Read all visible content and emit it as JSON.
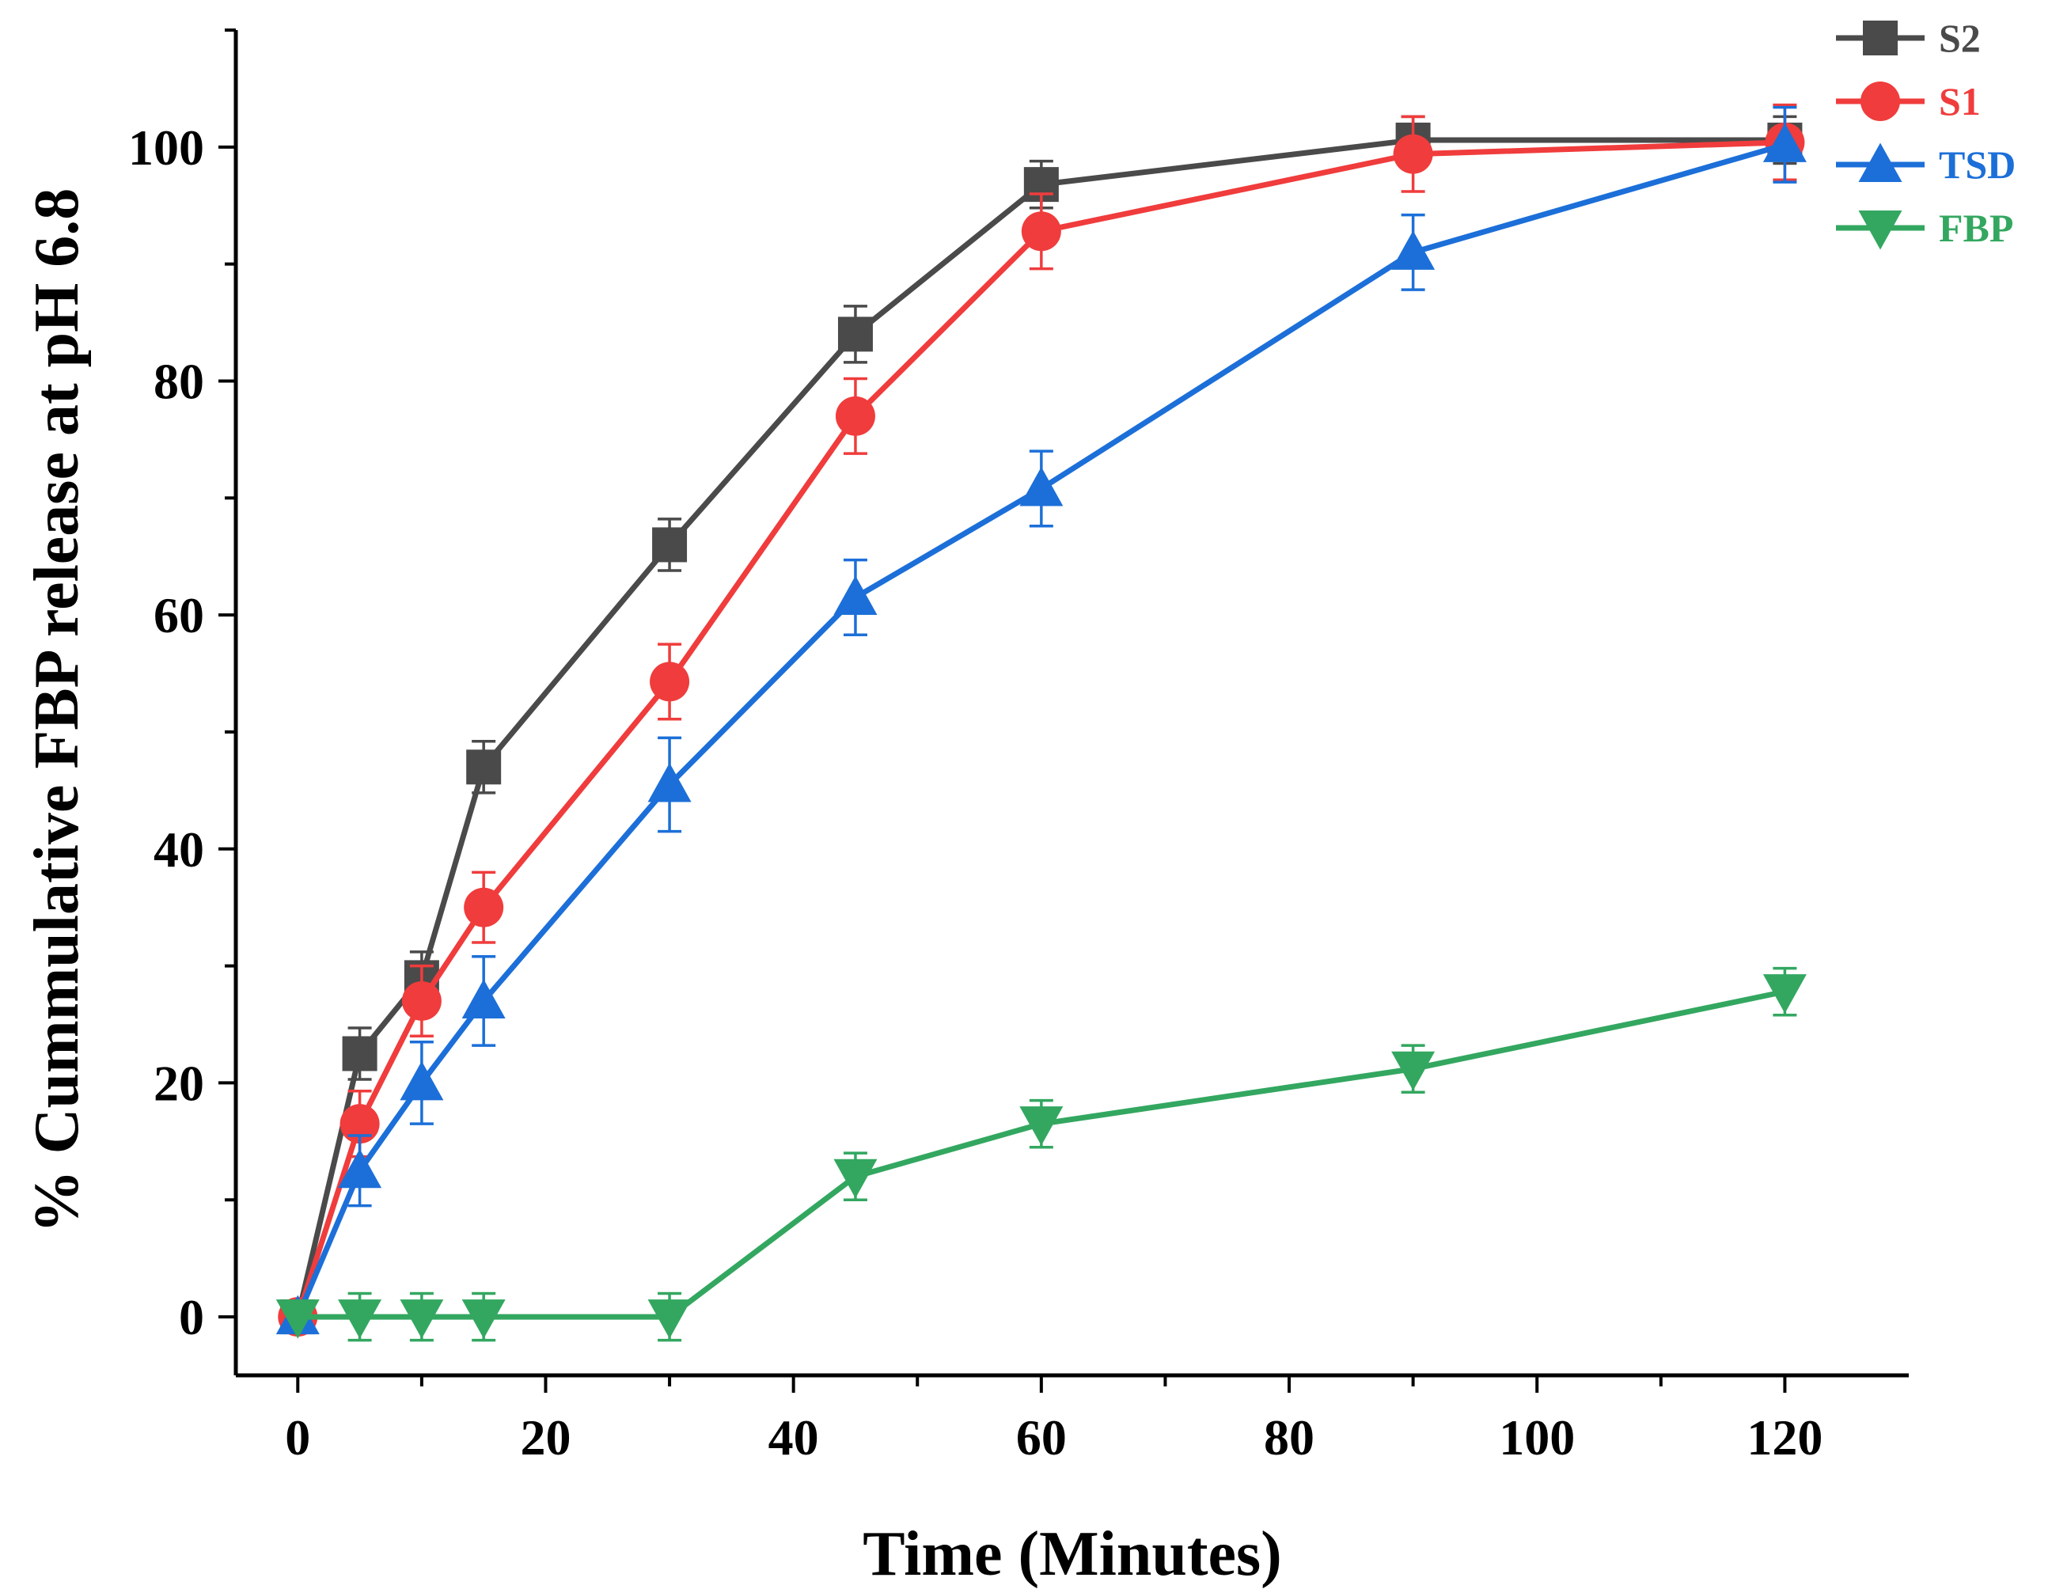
{
  "chart_data": {
    "type": "line",
    "title": "",
    "xlabel": "Time (Minutes)",
    "ylabel": "% Cummulative FBP release at pH 6.8",
    "xlim": [
      -5,
      130
    ],
    "ylim": [
      -5,
      110
    ],
    "xticks": [
      0,
      20,
      40,
      60,
      80,
      100,
      120
    ],
    "xtick_labels": [
      "0",
      "20",
      "40",
      "60",
      "80",
      "100",
      "120"
    ],
    "yticks": [
      0,
      20,
      40,
      60,
      80,
      100
    ],
    "ytick_labels": [
      "0",
      "20",
      "40",
      "60",
      "80",
      "100"
    ],
    "grid": false,
    "legend_position": "top-right",
    "series": [
      {
        "name": "S2",
        "color": "#4a4a4a",
        "marker": "square",
        "x": [
          0,
          5,
          10,
          15,
          30,
          45,
          60,
          90,
          120
        ],
        "y": [
          0,
          22.5,
          29,
          47,
          66,
          84,
          96.8,
          100.6,
          100.6
        ],
        "err": [
          0,
          2.2,
          2.2,
          2.2,
          2.2,
          2.4,
          2.0,
          2.0,
          2.0
        ]
      },
      {
        "name": "S1",
        "color": "#f03c3c",
        "marker": "circle",
        "x": [
          0,
          5,
          10,
          15,
          30,
          45,
          60,
          90,
          120
        ],
        "y": [
          0,
          16.5,
          27,
          35,
          54.3,
          77,
          92.8,
          99.4,
          100.4
        ],
        "err": [
          0,
          2.8,
          3.0,
          3.0,
          3.2,
          3.2,
          3.2,
          3.2,
          3.2
        ]
      },
      {
        "name": "TSD",
        "color": "#1c6fd8",
        "marker": "triangle-up",
        "x": [
          0,
          5,
          10,
          15,
          30,
          45,
          60,
          90,
          120
        ],
        "y": [
          0,
          12.5,
          20,
          27,
          45.5,
          61.5,
          70.8,
          91,
          100.2
        ],
        "err": [
          0,
          3.0,
          3.5,
          3.8,
          4.0,
          3.2,
          3.2,
          3.2,
          3.2
        ]
      },
      {
        "name": "FBP",
        "color": "#33a760",
        "marker": "triangle-down",
        "x": [
          0,
          5,
          10,
          15,
          30,
          45,
          60,
          90,
          120
        ],
        "y": [
          0,
          0,
          0,
          0,
          0,
          12,
          16.5,
          21.2,
          27.8
        ],
        "err": [
          0,
          2.0,
          2.0,
          2.0,
          2.0,
          2.0,
          2.0,
          2.0,
          2.0
        ]
      }
    ]
  }
}
